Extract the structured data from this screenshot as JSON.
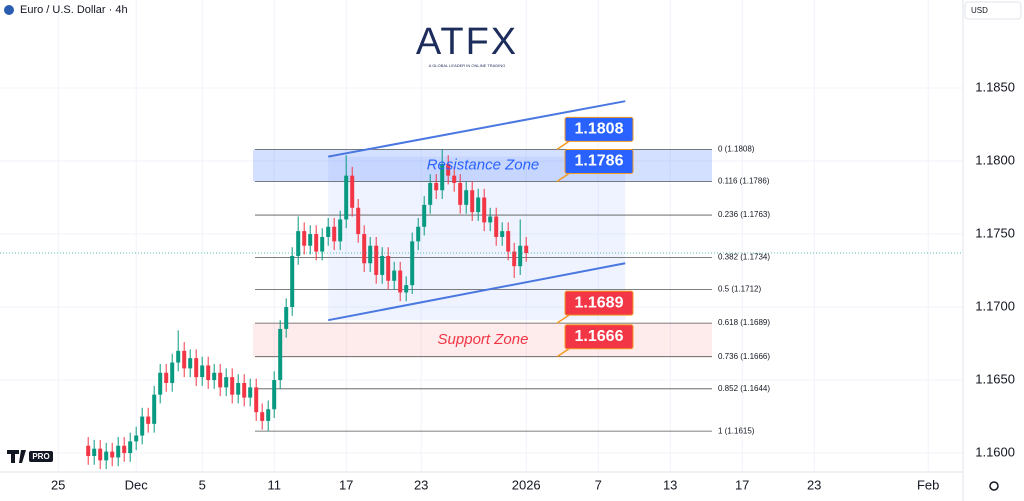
{
  "chart_data": {
    "type": "candlestick",
    "title": "Euro / U.S. Dollar · 4h",
    "currency": "USD",
    "logo": {
      "name": "ATFX",
      "tagline": "A GLOBAL LEADER IN ONLINE TRADING"
    },
    "badge": "PRO",
    "up_color": "#089981",
    "down_color": "#f23645",
    "x": [
      5,
      6,
      7,
      8,
      9,
      10,
      11,
      12,
      13,
      14,
      15,
      16,
      17,
      18,
      19,
      20,
      21,
      22,
      23,
      24,
      25,
      26,
      27,
      28,
      29,
      30,
      31,
      32,
      33,
      34,
      35,
      36,
      37,
      38,
      39,
      40,
      41,
      42,
      43,
      44,
      45,
      46,
      47,
      48,
      49,
      50,
      51,
      52,
      53,
      54,
      55,
      56,
      57,
      58,
      59,
      60,
      61,
      62,
      63,
      64,
      65,
      66,
      67,
      68,
      69,
      70,
      71,
      72,
      73,
      74,
      75,
      76,
      77,
      78
    ],
    "open": [
      1.1605,
      1.1598,
      1.1603,
      1.1595,
      1.1601,
      1.1597,
      1.1605,
      1.16,
      1.1608,
      1.1612,
      1.1625,
      1.162,
      1.164,
      1.1655,
      1.1648,
      1.1662,
      1.167,
      1.1658,
      1.1665,
      1.1652,
      1.166,
      1.165,
      1.1655,
      1.1645,
      1.1652,
      1.164,
      1.1648,
      1.1638,
      1.1645,
      1.1628,
      1.1622,
      1.163,
      1.165,
      1.1685,
      1.17,
      1.1735,
      1.1752,
      1.1742,
      1.175,
      1.1738,
      1.1748,
      1.1755,
      1.1745,
      1.176,
      1.179,
      1.1768,
      1.175,
      1.173,
      1.1742,
      1.1722,
      1.1735,
      1.1718,
      1.1725,
      1.171,
      1.1715,
      1.1745,
      1.1755,
      1.177,
      1.1785,
      1.178,
      1.1798,
      1.179,
      1.1785,
      1.177,
      1.178,
      1.1765,
      1.1775,
      1.1758,
      1.1762,
      1.1748,
      1.1752,
      1.1738,
      1.1728,
      1.1742
    ],
    "high": [
      1.1611,
      1.1609,
      1.1609,
      1.1607,
      1.1607,
      1.1611,
      1.1611,
      1.1614,
      1.1618,
      1.1631,
      1.1631,
      1.1646,
      1.1661,
      1.1661,
      1.1668,
      1.1684,
      1.1676,
      1.1671,
      1.1671,
      1.1666,
      1.1666,
      1.1661,
      1.1661,
      1.1658,
      1.1658,
      1.1654,
      1.1654,
      1.1651,
      1.1651,
      1.1634,
      1.1636,
      1.1656,
      1.1691,
      1.1706,
      1.1741,
      1.1762,
      1.1758,
      1.1756,
      1.1756,
      1.1754,
      1.1761,
      1.1761,
      1.1766,
      1.1804,
      1.1796,
      1.1774,
      1.1756,
      1.1748,
      1.1748,
      1.1741,
      1.1741,
      1.1731,
      1.1731,
      1.1721,
      1.1751,
      1.1761,
      1.1776,
      1.1791,
      1.1791,
      1.1808,
      1.1804,
      1.1796,
      1.1791,
      1.1786,
      1.1786,
      1.1781,
      1.1781,
      1.1768,
      1.1768,
      1.1758,
      1.1758,
      1.1744,
      1.176,
      1.1748
    ],
    "low": [
      1.1592,
      1.1592,
      1.1589,
      1.1589,
      1.1591,
      1.1591,
      1.1594,
      1.1594,
      1.1602,
      1.1606,
      1.1614,
      1.1614,
      1.1634,
      1.1642,
      1.1642,
      1.1656,
      1.1652,
      1.1652,
      1.1646,
      1.1646,
      1.1644,
      1.1644,
      1.1639,
      1.1639,
      1.1634,
      1.1634,
      1.1632,
      1.1632,
      1.1622,
      1.1616,
      1.1615,
      1.1624,
      1.1644,
      1.1679,
      1.1694,
      1.1729,
      1.1736,
      1.1736,
      1.1732,
      1.1732,
      1.1742,
      1.1739,
      1.1739,
      1.1754,
      1.1762,
      1.1744,
      1.1724,
      1.1724,
      1.1716,
      1.1716,
      1.1712,
      1.1712,
      1.1704,
      1.1704,
      1.1709,
      1.1739,
      1.1749,
      1.1764,
      1.1774,
      1.1774,
      1.1784,
      1.1779,
      1.1764,
      1.1764,
      1.1759,
      1.1759,
      1.1752,
      1.1752,
      1.1742,
      1.1742,
      1.1732,
      1.172,
      1.1722,
      1.1731
    ],
    "close": [
      1.1598,
      1.1603,
      1.1595,
      1.1601,
      1.1597,
      1.1605,
      1.16,
      1.1608,
      1.1612,
      1.1625,
      1.162,
      1.164,
      1.1655,
      1.1648,
      1.1662,
      1.167,
      1.1658,
      1.1665,
      1.1652,
      1.166,
      1.165,
      1.1655,
      1.1645,
      1.1652,
      1.164,
      1.1648,
      1.1638,
      1.1645,
      1.1628,
      1.1622,
      1.163,
      1.165,
      1.1685,
      1.17,
      1.1735,
      1.1752,
      1.1742,
      1.175,
      1.1738,
      1.1748,
      1.1755,
      1.1745,
      1.176,
      1.179,
      1.1768,
      1.175,
      1.173,
      1.1742,
      1.1722,
      1.1735,
      1.1718,
      1.1725,
      1.171,
      1.1715,
      1.1745,
      1.1755,
      1.177,
      1.1785,
      1.178,
      1.1798,
      1.179,
      1.1785,
      1.177,
      1.178,
      1.1765,
      1.1775,
      1.1758,
      1.1762,
      1.1748,
      1.1752,
      1.1738,
      1.1728,
      1.1742,
      1.1737
    ],
    "xlim": [
      -9.7,
      150.8
    ],
    "xticks": [
      {
        "value": 0,
        "label": "25"
      },
      {
        "value": 13,
        "label": "Dec"
      },
      {
        "value": 24,
        "label": "5"
      },
      {
        "value": 36,
        "label": "11"
      },
      {
        "value": 48,
        "label": "17"
      },
      {
        "value": 60.5,
        "label": "23"
      },
      {
        "value": 78,
        "label": "2026"
      },
      {
        "value": 90,
        "label": "7"
      },
      {
        "value": 102,
        "label": "13"
      },
      {
        "value": 114,
        "label": "17"
      },
      {
        "value": 126,
        "label": "23"
      },
      {
        "value": 145,
        "label": "Feb"
      }
    ],
    "ylim": [
      1.15884,
      1.19103
    ],
    "yticks": [
      {
        "value": 1.16,
        "label": "1.1600"
      },
      {
        "value": 1.165,
        "label": "1.1650"
      },
      {
        "value": 1.17,
        "label": "1.1700"
      },
      {
        "value": 1.175,
        "label": "1.1750"
      },
      {
        "value": 1.18,
        "label": "1.1800"
      },
      {
        "value": 1.185,
        "label": "1.1850"
      }
    ],
    "grid": true,
    "fib_levels": [
      {
        "value": 1.1808,
        "label": "0 (1.1808)"
      },
      {
        "value": 1.1786,
        "label": "0.116 (1.1786)"
      },
      {
        "value": 1.1763,
        "label": "0.236 (1.1763)"
      },
      {
        "value": 1.1734,
        "label": "0.382 (1.1734)"
      },
      {
        "value": 1.1712,
        "label": "0.5 (1.1712)"
      },
      {
        "value": 1.1689,
        "label": "0.618 (1.1689)"
      },
      {
        "value": 1.1666,
        "label": "0.736 (1.1666)"
      },
      {
        "value": 1.1644,
        "label": "0.852 (1.1644)"
      },
      {
        "value": 1.1615,
        "label": "1 (1.1615)"
      }
    ],
    "zones": [
      {
        "name": "Resistance Zone",
        "top": 1.1808,
        "bottom": 1.1786,
        "color": "#2962ff"
      },
      {
        "name": "Support Zone",
        "top": 1.1689,
        "bottom": 1.1666,
        "color": "#f23645"
      }
    ],
    "callouts": [
      {
        "value": 1.1808,
        "color": "#2962ff"
      },
      {
        "value": 1.1786,
        "color": "#2962ff"
      },
      {
        "value": 1.1689,
        "color": "#f23645"
      },
      {
        "value": 1.1666,
        "color": "#f23645"
      }
    ],
    "channel": {
      "x": [
        45,
        94.5
      ],
      "upper": [
        1.1803,
        1.1841
      ],
      "lower": [
        1.1691,
        1.173
      ],
      "color": "#4a78e0"
    }
  }
}
